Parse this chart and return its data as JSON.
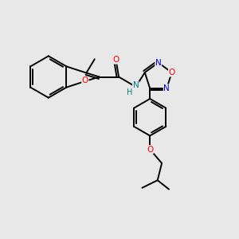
{
  "background_color": "#e8e8e8",
  "bond_color": "#000000",
  "atom_colors": {
    "O": "#ff0000",
    "N": "#0000cd",
    "NH": "#008080",
    "H": "#008080"
  },
  "lw": 1.4,
  "fontsize": 7.5
}
